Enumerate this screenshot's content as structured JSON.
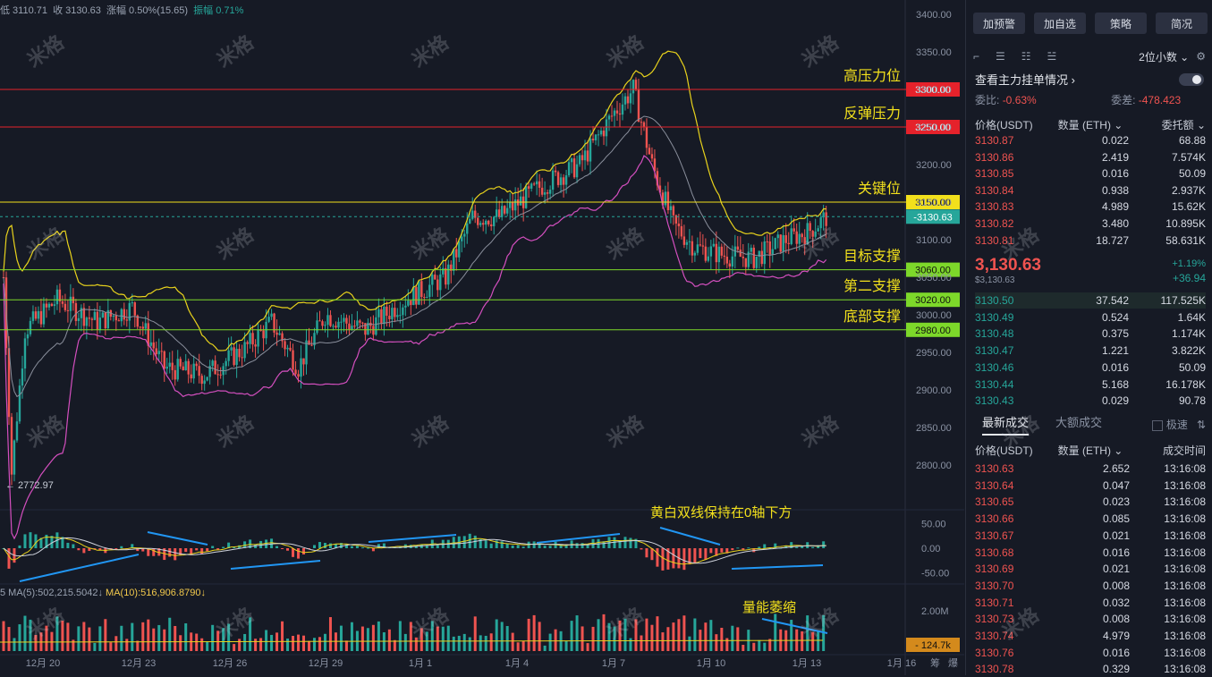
{
  "ohlc_bar": {
    "low": "低 3110.71",
    "close": "收 3130.63",
    "change": "涨幅 0.50%(15.65)",
    "amplitude": "振幅 0.71%"
  },
  "price_axis": [
    "3400.00",
    "3350.00",
    "3300.00",
    "3250.00",
    "3200.00",
    "3150.00",
    "3100.00",
    "3050.00",
    "3000.00",
    "2950.00",
    "2900.00",
    "2850.00",
    "2800.00"
  ],
  "macd_axis": [
    "50.00",
    "0.00",
    "-50.00"
  ],
  "volume_axis": [
    "2.00M"
  ],
  "level_lines": [
    {
      "label": "高压力位",
      "price": "3300.00",
      "color": "#e5222b"
    },
    {
      "label": "反弹压力",
      "price": "3250.00",
      "color": "#e5222b"
    },
    {
      "label": "关键位",
      "price": "3150.00",
      "color": "#f2e01c"
    },
    {
      "label": "目标支撑",
      "price": "3060.00",
      "color": "#7dd82a"
    },
    {
      "label": "第二支撑",
      "price": "3020.00",
      "color": "#7dd82a"
    },
    {
      "label": "底部支撑",
      "price": "2980.00",
      "color": "#7dd82a"
    }
  ],
  "current_price_tag": "3130.63",
  "low_marker": "← 2772.97",
  "macd_annotation": "黄白双线保持在0轴下方",
  "volume_annotation": "量能萎缩",
  "volume_tag": "124.7k",
  "ma_legend": {
    "ma5": "5  MA(5):502,215.5042↓",
    "ma10": "MA(10):516,906.8790↓"
  },
  "date_axis": [
    "12月 20",
    "12月 23",
    "12月 26",
    "12月 29",
    "1月 1",
    "1月 4",
    "1月 7",
    "1月 10",
    "1月 13",
    "1月 16"
  ],
  "axis_corner": [
    "筹",
    "爆"
  ],
  "watermark": "米格",
  "panel": {
    "buttons": [
      "加预警",
      "加自选",
      "策略",
      "简况"
    ],
    "decimal_select": "2位小数 ⌄",
    "orderbook_toggle_label": "查看主力挂单情况 ›",
    "weibi_label": "委比:",
    "weibi_value": "-0.63%",
    "weicha_label": "委差:",
    "weicha_value": "-478.423",
    "book_header": [
      "价格(USDT)",
      "数量 (ETH) ⌄",
      "委托额 ⌄"
    ],
    "asks": [
      [
        "3130.87",
        "0.022",
        "68.88"
      ],
      [
        "3130.86",
        "2.419",
        "7.574K"
      ],
      [
        "3130.85",
        "0.016",
        "50.09"
      ],
      [
        "3130.84",
        "0.938",
        "2.937K"
      ],
      [
        "3130.83",
        "4.989",
        "15.62K"
      ],
      [
        "3130.82",
        "3.480",
        "10.895K"
      ],
      [
        "3130.81",
        "18.727",
        "58.631K"
      ]
    ],
    "last_price": "3,130.63",
    "last_price_usd": "$3,130.63",
    "pct_change": "+1.19%",
    "abs_change": "+36.94",
    "bids": [
      [
        "3130.50",
        "37.542",
        "117.525K"
      ],
      [
        "3130.49",
        "0.524",
        "1.64K"
      ],
      [
        "3130.48",
        "0.375",
        "1.174K"
      ],
      [
        "3130.47",
        "1.221",
        "3.822K"
      ],
      [
        "3130.46",
        "0.016",
        "50.09"
      ],
      [
        "3130.44",
        "5.168",
        "16.178K"
      ],
      [
        "3130.43",
        "0.029",
        "90.78"
      ]
    ],
    "tab_latest": "最新成交",
    "tab_big": "大额成交",
    "fast_label": "极速",
    "trade_header": [
      "价格(USDT)",
      "数量 (ETH) ⌄",
      "成交时间"
    ],
    "trades": [
      [
        "3130.63",
        "2.652",
        "13:16:08"
      ],
      [
        "3130.64",
        "0.047",
        "13:16:08"
      ],
      [
        "3130.65",
        "0.023",
        "13:16:08"
      ],
      [
        "3130.66",
        "0.085",
        "13:16:08"
      ],
      [
        "3130.67",
        "0.021",
        "13:16:08"
      ],
      [
        "3130.68",
        "0.016",
        "13:16:08"
      ],
      [
        "3130.69",
        "0.021",
        "13:16:08"
      ],
      [
        "3130.70",
        "0.008",
        "13:16:08"
      ],
      [
        "3130.71",
        "0.032",
        "13:16:08"
      ],
      [
        "3130.73",
        "0.008",
        "13:16:08"
      ],
      [
        "3130.74",
        "4.979",
        "13:16:08"
      ],
      [
        "3130.76",
        "0.016",
        "13:16:08"
      ],
      [
        "3130.78",
        "0.329",
        "13:16:08"
      ]
    ]
  }
}
